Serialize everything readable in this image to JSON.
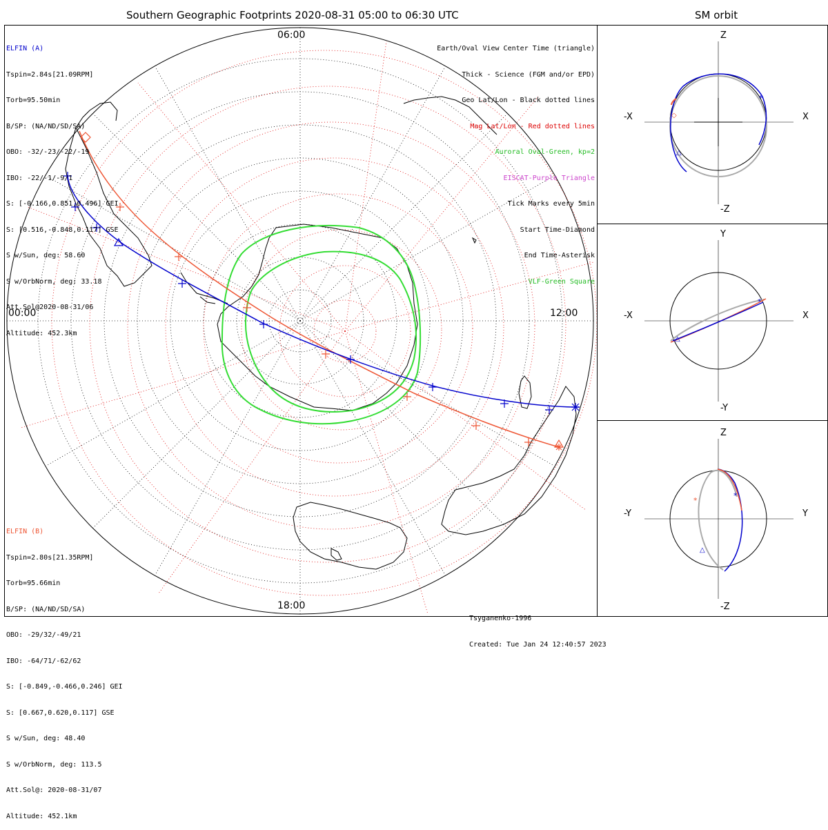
{
  "title": "Southern Geographic Footprints 2020-08-31 05:00 to 06:30 UTC",
  "side_title": "SM orbit",
  "time_labels": {
    "top": "06:00",
    "left": "00:00",
    "right": "12:00",
    "bottom": "18:00"
  },
  "elfin_a": {
    "name": "ELFIN (A)",
    "color": "#0000cc",
    "lines": [
      "Tspin=2.84s[21.09RPM]",
      "Torb=95.50min",
      "B/SP: (NA/ND/SD/SA)",
      "OBO: -32/-23/-22/-19",
      "IBO: -22/-1/-9/1",
      "S: [-0.166,0.851,0.496] GEI",
      "S: [0.516,-0.848,0.117] GSE",
      "S w/Sun, deg: 58.60",
      "S w/OrbNorm, deg: 33.18",
      "Att.Sol@2020-08-31/06",
      "Altitude: 452.3km"
    ]
  },
  "elfin_b": {
    "name": "ELFIN (B)",
    "color": "#ee5533",
    "lines": [
      "Tspin=2.80s[21.35RPM]",
      "Torb=95.66min",
      "B/SP: (NA/ND/SD/SA)",
      "OBO: -29/32/-49/21",
      "IBO: -64/71/-62/62",
      "S: [-0.849,-0.466,0.246] GEI",
      "S: [0.667,0.620,0.117] GSE",
      "S w/Sun, deg: 48.40",
      "S w/OrbNorm, deg: 113.5",
      "Att.Sol@: 2020-08-31/07",
      "Altitude: 452.1km"
    ]
  },
  "legend": [
    {
      "text": "Earth/Oval View Center Time (triangle)",
      "color": "#000000"
    },
    {
      "text": "Thick - Science (FGM and/or EPD)",
      "color": "#000000"
    },
    {
      "text": "Geo Lat/Lon - Black dotted lines",
      "color": "#000000"
    },
    {
      "text": "Mag Lat/Lon - Red dotted lines",
      "color": "#dd0000"
    },
    {
      "text": "Auroral Oval-Green, kp=2",
      "color": "#22bb22"
    },
    {
      "text": "EISCAT-Purple Triangle",
      "color": "#cc44cc"
    },
    {
      "text": "Tick Marks every 5min",
      "color": "#000000"
    },
    {
      "text": "Start Time-Diamond",
      "color": "#000000"
    },
    {
      "text": "End Time-Asterisk",
      "color": "#000000"
    },
    {
      "text": "VLF-Green Square",
      "color": "#22bb22"
    }
  ],
  "footer": {
    "model": "Tsyganenko-1996",
    "created": "Created: Tue Jan 24 12:40:57 2023"
  },
  "orbit_panels": [
    {
      "top": "Z",
      "bottom": "-Z",
      "left": "-X",
      "right": "X"
    },
    {
      "top": "Y",
      "bottom": "-Y",
      "left": "-X",
      "right": "X"
    },
    {
      "top": "Z",
      "bottom": "-Z",
      "left": "-Y",
      "right": "Y"
    }
  ],
  "colors": {
    "elfin_a": "#0000cc",
    "elfin_b": "#ee5533",
    "oval": "#33dd33",
    "grid_mag": "#dd0000"
  }
}
